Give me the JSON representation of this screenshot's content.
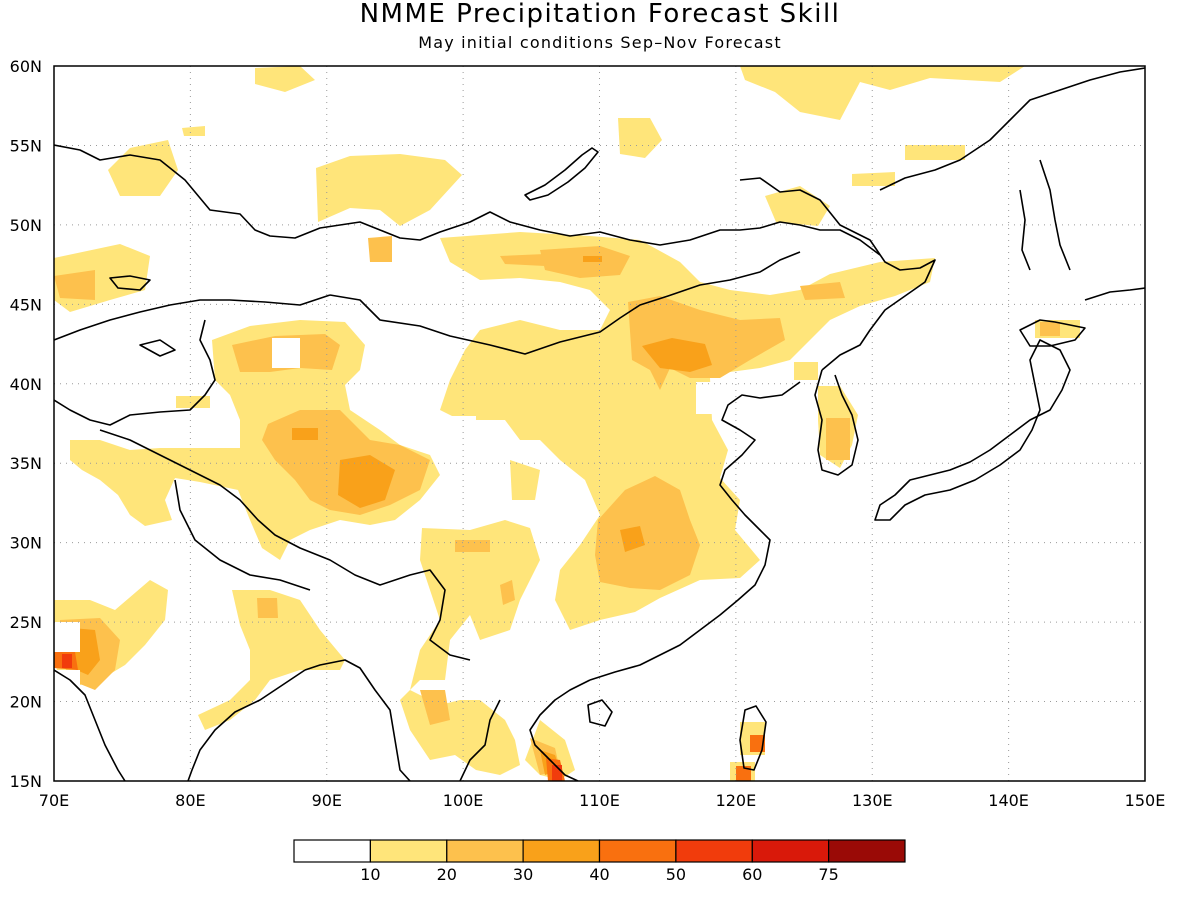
{
  "header": {
    "title": "NMME Precipitation Forecast Skill",
    "subtitle": "May initial conditions  Sep–Nov Forecast"
  },
  "map": {
    "lon_range": [
      70,
      150
    ],
    "lat_range": [
      15,
      60
    ],
    "lon_ticks": [
      "70E",
      "80E",
      "90E",
      "100E",
      "110E",
      "120E",
      "130E",
      "140E",
      "150E"
    ],
    "lat_ticks": [
      "15N",
      "20N",
      "25N",
      "30N",
      "35N",
      "40N",
      "45N",
      "50N",
      "55N",
      "60N"
    ],
    "grid": "dotted"
  },
  "colorbar": {
    "labels": [
      "10",
      "20",
      "30",
      "40",
      "50",
      "60",
      "75"
    ],
    "colors": [
      "#ffffff",
      "#ffe57a",
      "#fdc14d",
      "#f9a11a",
      "#f9700f",
      "#f13c0c",
      "#d9190a",
      "#9a0a06"
    ]
  }
}
